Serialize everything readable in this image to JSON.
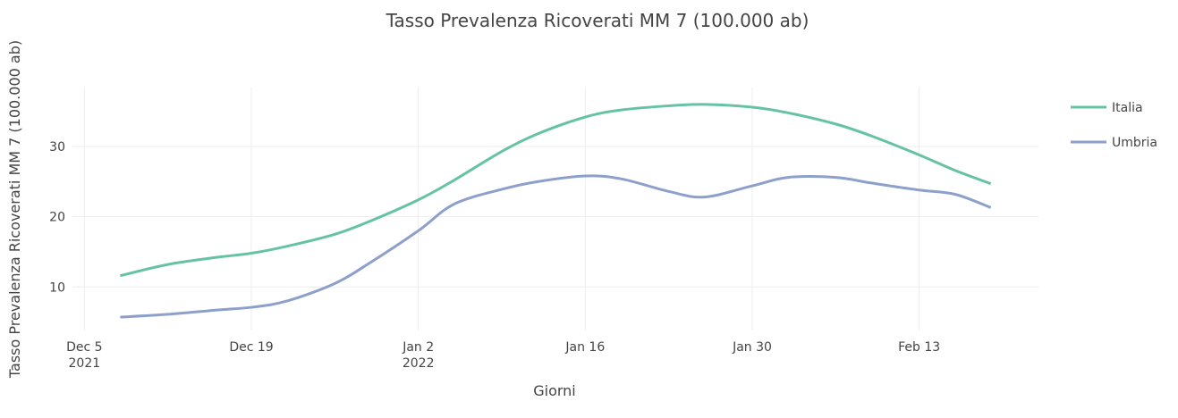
{
  "chart_data": {
    "type": "line",
    "title": "Tasso Prevalenza Ricoverati MM 7 (100.000 ab)",
    "x_label": "Giorni",
    "y_label": "Tasso Prevalenza Ricoverati MM 7 (100.000 ab)",
    "x": [
      "2021-12-08",
      "2021-12-12",
      "2021-12-16",
      "2021-12-19",
      "2021-12-22",
      "2021-12-26",
      "2021-12-29",
      "2022-01-02",
      "2022-01-05",
      "2022-01-09",
      "2022-01-12",
      "2022-01-16",
      "2022-01-19",
      "2022-01-23",
      "2022-01-26",
      "2022-01-30",
      "2022-02-02",
      "2022-02-06",
      "2022-02-09",
      "2022-02-13",
      "2022-02-16",
      "2022-02-19"
    ],
    "series": [
      {
        "name": "Italia",
        "color": "#66c2a5",
        "values": [
          11.6,
          13.2,
          14.2,
          14.8,
          15.8,
          17.5,
          19.4,
          22.4,
          25.2,
          29.3,
          31.8,
          34.2,
          35.2,
          35.8,
          36.0,
          35.6,
          34.8,
          33.2,
          31.5,
          28.8,
          26.6,
          24.7
        ]
      },
      {
        "name": "Umbria",
        "color": "#8da0cb",
        "values": [
          5.7,
          6.1,
          6.7,
          7.1,
          8.0,
          10.5,
          13.5,
          18.0,
          21.8,
          23.9,
          25.0,
          25.8,
          25.4,
          23.6,
          22.8,
          24.4,
          25.6,
          25.6,
          24.8,
          23.8,
          23.2,
          21.3
        ]
      }
    ],
    "xlim": [
      "2021-12-04",
      "2022-02-23"
    ],
    "xticks": [
      {
        "value": "2021-12-05",
        "label": "Dec 5\n2021"
      },
      {
        "value": "2021-12-19",
        "label": "Dec 19"
      },
      {
        "value": "2022-01-02",
        "label": "Jan 2\n2022"
      },
      {
        "value": "2022-01-16",
        "label": "Jan 16"
      },
      {
        "value": "2022-01-30",
        "label": "Jan 30"
      },
      {
        "value": "2022-02-13",
        "label": "Feb 13"
      }
    ],
    "ylim": [
      3.8,
      38.4
    ],
    "yticks": [
      10,
      20,
      30
    ],
    "grid": true,
    "legend": "right"
  }
}
